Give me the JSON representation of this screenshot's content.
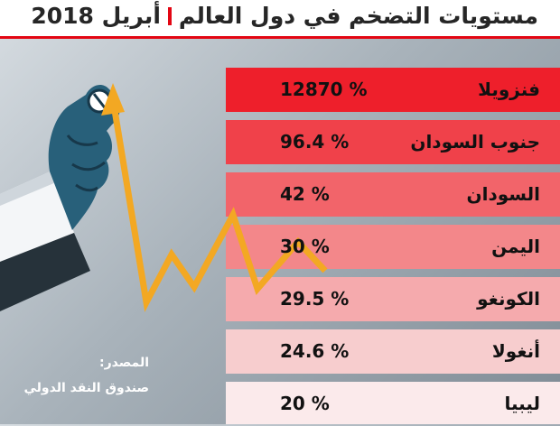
{
  "header": {
    "title": "مستويات التضخم في دول العالم",
    "date": "أبريل 2018"
  },
  "source": {
    "label": "المصدر:",
    "name": "صندوق النقد الدولي"
  },
  "colors": {
    "accent": "#e30613",
    "row_colors": [
      "#ee1f2b",
      "#f0414a",
      "#f2646a",
      "#f3878a",
      "#f5aaad",
      "#f7cdce",
      "#fbeaeb"
    ]
  },
  "icons": [
    "hand-holding-pen-icon",
    "zigzag-arrow-icon"
  ],
  "chart_data": {
    "type": "bar",
    "categories": [
      "فنزويلا",
      "جنوب السودان",
      "السودان",
      "اليمن",
      "الكونغو",
      "أنغولا",
      "ليبيا"
    ],
    "series": [
      {
        "values": [
          12870,
          96.4,
          42,
          30,
          29.5,
          24.6,
          20
        ],
        "labels": [
          "12870 %",
          "96.4 %",
          "42 %",
          "30 %",
          "29.5 %",
          "24.6 %",
          "20 %"
        ]
      }
    ],
    "unit": "%"
  }
}
